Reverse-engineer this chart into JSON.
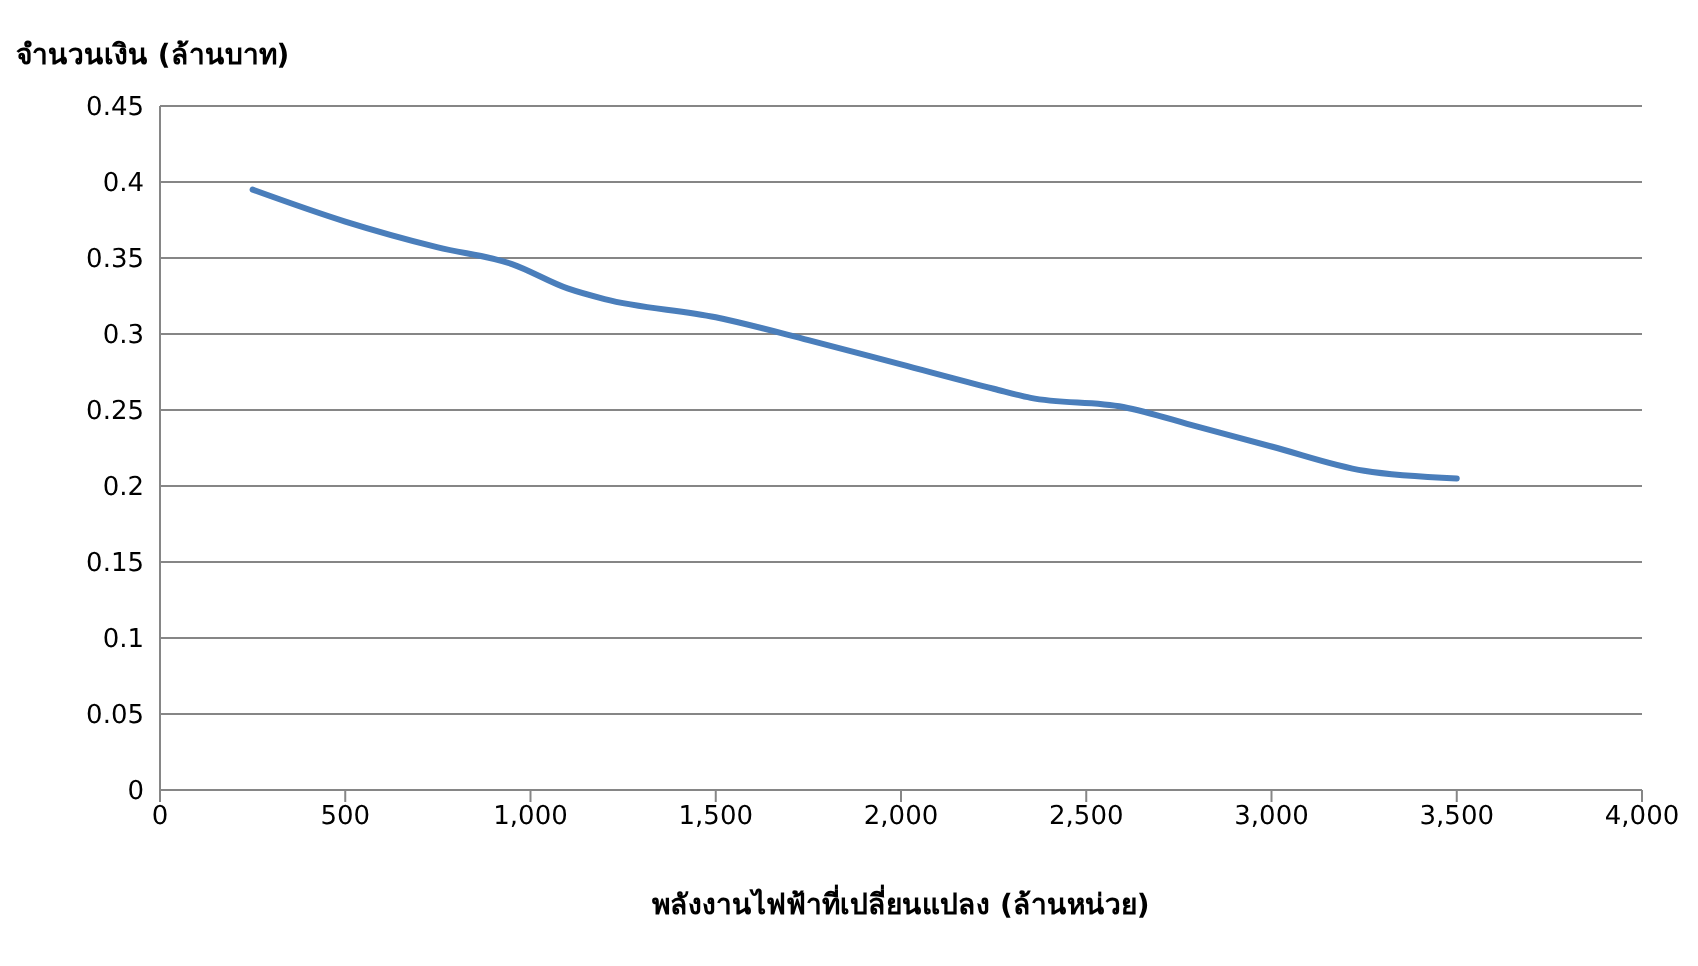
{
  "chart_data": {
    "type": "line",
    "ylabel": "จำนวนเงิน (ล้านบาท)",
    "xlabel": "พลังงานไฟฟ้าที่เปลี่ยนแปลง (ล้านหน่วย)",
    "x": [
      250,
      500,
      750,
      950,
      1100,
      1200,
      1500,
      1750,
      2000,
      2250,
      2350,
      2600,
      2800,
      3000,
      3250,
      3500
    ],
    "series": [
      {
        "color": "#4a7ebb",
        "values": [
          0.395,
          0.374,
          0.357,
          0.346,
          0.33,
          0.323,
          0.311,
          0.296,
          0.28,
          0.264,
          0.258,
          0.252,
          0.239,
          0.226,
          0.21,
          0.205
        ]
      }
    ],
    "xlim": [
      0,
      4000
    ],
    "xticks": [
      0,
      500,
      {
        "value": 1000,
        "label": "1,000"
      },
      {
        "value": 1500,
        "label": "1,500"
      },
      {
        "value": 2000,
        "label": "2,000"
      },
      {
        "value": 2500,
        "label": "2,500"
      },
      {
        "value": 3000,
        "label": "3,000"
      },
      {
        "value": 3500,
        "label": "3,500"
      },
      {
        "value": 4000,
        "label": "4,000"
      }
    ],
    "ylim": [
      0,
      0.45
    ],
    "yticks": [
      0,
      0.05,
      0.1,
      0.15,
      0.2,
      0.25,
      0.3,
      0.35,
      0.4,
      0.45
    ],
    "grid": "y",
    "legend": false,
    "marker": "none",
    "line_style": "solid"
  }
}
